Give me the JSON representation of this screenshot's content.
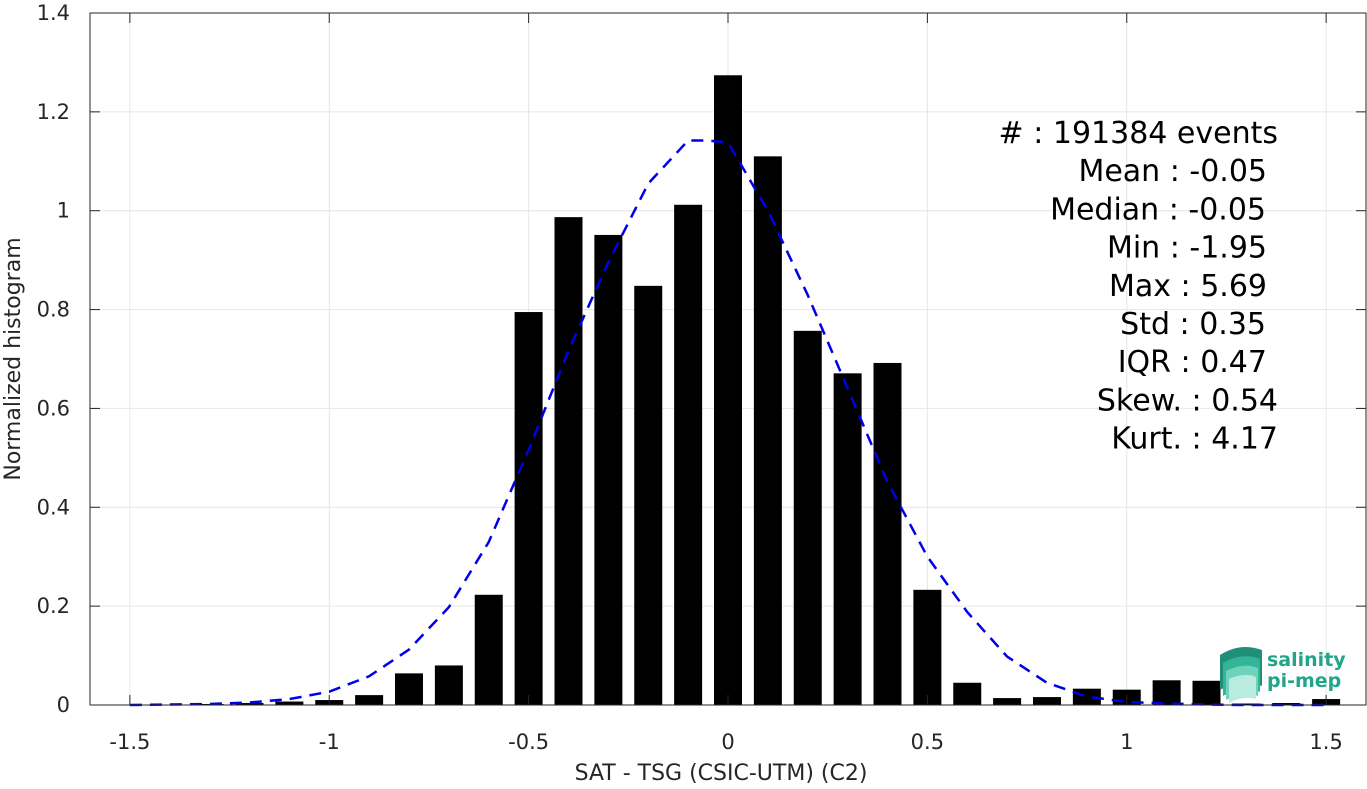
{
  "chart_data": {
    "type": "bar",
    "xlabel": "SAT - TSG (CSIC-UTM) (C2)",
    "ylabel": "Normalized histogram",
    "xlim": [
      -1.6,
      1.6
    ],
    "ylim": [
      0,
      1.4
    ],
    "grid": true,
    "xticks": [
      -1.5,
      -1,
      -0.5,
      0,
      0.5,
      1,
      1.5
    ],
    "xtick_labels": [
      "-1.5",
      "-1",
      "-0.5",
      "0",
      "0.5",
      "1",
      "1.5"
    ],
    "yticks": [
      0,
      0.2,
      0.4,
      0.6,
      0.8,
      1,
      1.2,
      1.4
    ],
    "ytick_labels": [
      "0",
      "0.2",
      "0.4",
      "0.6",
      "0.8",
      "1",
      "1.2",
      "1.4"
    ],
    "bar_color": "#000000",
    "bars": {
      "x": [
        -1.5,
        -1.4,
        -1.3,
        -1.2,
        -1.1,
        -1.0,
        -0.9,
        -0.8,
        -0.7,
        -0.6,
        -0.5,
        -0.4,
        -0.3,
        -0.2,
        -0.1,
        0.0,
        0.1,
        0.2,
        0.3,
        0.4,
        0.5,
        0.6,
        0.7,
        0.8,
        0.9,
        1.0,
        1.1,
        1.2,
        1.3,
        1.4,
        1.5
      ],
      "values": [
        0.001,
        0.001,
        0.002,
        0.004,
        0.007,
        0.01,
        0.02,
        0.064,
        0.08,
        0.223,
        0.795,
        0.987,
        0.951,
        0.848,
        1.012,
        1.274,
        1.11,
        0.757,
        0.671,
        0.692,
        0.233,
        0.045,
        0.014,
        0.016,
        0.033,
        0.031,
        0.05,
        0.049,
        0.003,
        0.004,
        0.012
      ]
    },
    "fit_curve": {
      "style": "dashed",
      "color": "#0000e6",
      "x": [
        -1.5,
        -1.4,
        -1.3,
        -1.2,
        -1.1,
        -1.0,
        -0.9,
        -0.8,
        -0.7,
        -0.6,
        -0.5,
        -0.4,
        -0.3,
        -0.2,
        -0.1,
        -0.05,
        0.0,
        0.1,
        0.2,
        0.3,
        0.4,
        0.5,
        0.6,
        0.7,
        0.8,
        0.9,
        1.0,
        1.1,
        1.2,
        1.3,
        1.4,
        1.5
      ],
      "y": [
        0.0,
        0.001,
        0.002,
        0.005,
        0.012,
        0.027,
        0.058,
        0.112,
        0.198,
        0.33,
        0.516,
        0.717,
        0.896,
        1.055,
        1.142,
        1.142,
        1.138,
        1.0,
        0.829,
        0.641,
        0.451,
        0.3,
        0.188,
        0.098,
        0.045,
        0.017,
        0.006,
        0.003,
        0.001,
        0.0,
        0.0,
        0.0
      ]
    },
    "annotations": [
      "#  : 191384 events",
      "Mean : -0.05",
      "Median : -0.05",
      "Min : -1.95",
      "Max : 5.69",
      "Std : 0.35",
      "IQR : 0.47",
      "Skew. : 0.54",
      "Kurt. : 4.17"
    ]
  },
  "logo": {
    "line1": "salinity",
    "line2": "pi-mep",
    "color": "#22a58a"
  }
}
